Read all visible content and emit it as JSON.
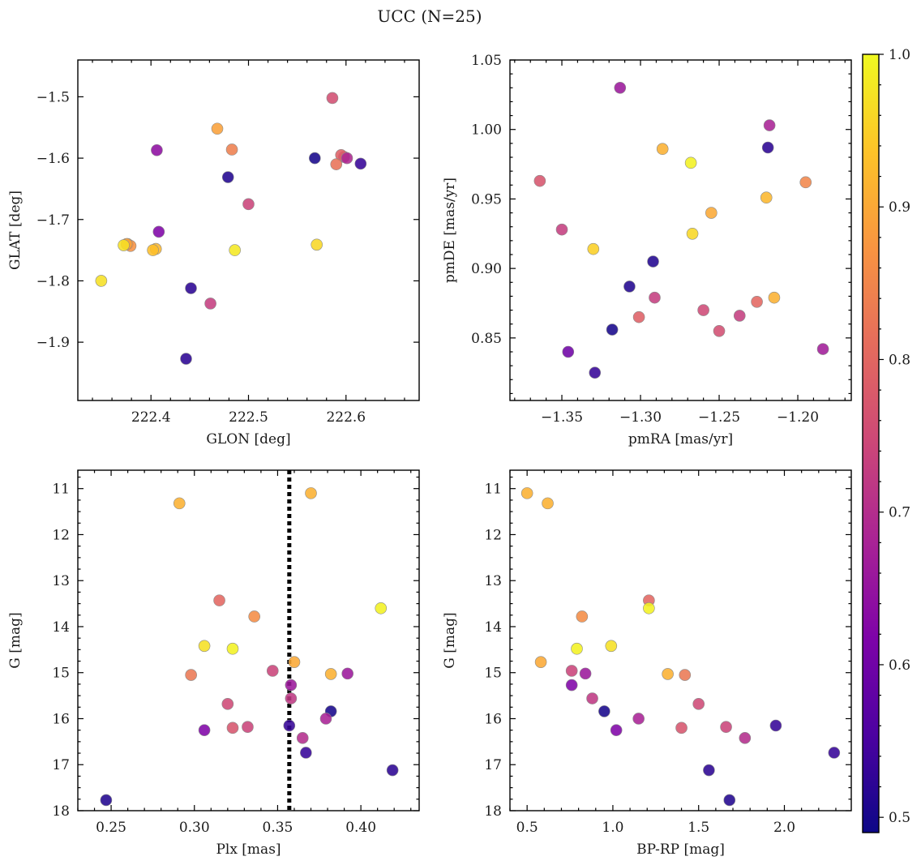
{
  "title": "UCC (N=25)",
  "colorbar": {
    "range": [
      0.49,
      1.0
    ],
    "ticks": [
      0.5,
      0.6,
      0.7,
      0.8,
      0.9,
      1.0
    ],
    "tick_labels": [
      "0.5",
      "0.6",
      "0.7",
      "0.8",
      "0.9",
      "1.0"
    ],
    "colormap": "plasma"
  },
  "chart_data": [
    {
      "type": "scatter",
      "xlabel": "GLON [deg]",
      "ylabel": "GLAT [deg]",
      "xlim": [
        222.325,
        222.675
      ],
      "ylim": [
        -1.995,
        -1.44
      ],
      "xticks": [
        222.4,
        222.5,
        222.6
      ],
      "xtick_labels": [
        "222.4",
        "222.5",
        "222.6"
      ],
      "yticks": [
        -1.5,
        -1.6,
        -1.7,
        -1.8,
        -1.9
      ],
      "ytick_labels": [
        "−1.5",
        "−1.6",
        "−1.7",
        "−1.8",
        "−1.9"
      ],
      "x": [
        222.468,
        222.483,
        222.376,
        222.379,
        222.375,
        222.405,
        222.57,
        222.598,
        222.568,
        222.615,
        222.595,
        222.59,
        222.601,
        222.586,
        222.5,
        222.406,
        222.486,
        222.479,
        222.408,
        222.441,
        222.461,
        222.436,
        222.402,
        222.372,
        222.349
      ],
      "y": [
        -1.552,
        -1.586,
        -1.74,
        -1.743,
        -1.74,
        -1.748,
        -1.741,
        -1.598,
        -1.6,
        -1.609,
        -1.595,
        -1.61,
        -1.6,
        -1.502,
        -1.675,
        -1.587,
        -1.75,
        -1.631,
        -1.72,
        -1.812,
        -1.837,
        -1.927,
        -1.75,
        -1.742,
        -1.8
      ],
      "color_values": [
        0.89,
        0.84,
        0.9,
        0.87,
        0.89,
        0.92,
        0.96,
        0.71,
        0.5,
        0.53,
        0.79,
        0.82,
        0.69,
        0.76,
        0.74,
        0.64,
        0.98,
        0.51,
        0.62,
        0.52,
        0.73,
        0.52,
        0.93,
        0.97,
        0.97
      ]
    },
    {
      "type": "scatter",
      "xlabel": "pmRA [mas/yr]",
      "ylabel": "pmDE [mas/yr]",
      "xlim": [
        -1.383,
        -1.166
      ],
      "ylim": [
        0.805,
        1.05
      ],
      "xticks": [
        -1.35,
        -1.3,
        -1.25,
        -1.2
      ],
      "xtick_labels": [
        "−1.35",
        "−1.30",
        "−1.25",
        "−1.20"
      ],
      "yticks": [
        0.85,
        0.9,
        0.95,
        1.0,
        1.05
      ],
      "ytick_labels": [
        "0.85",
        "0.90",
        "0.95",
        "1.00",
        "1.05"
      ],
      "x": [
        -1.313,
        -1.364,
        -1.35,
        -1.33,
        -1.346,
        -1.329,
        -1.318,
        -1.307,
        -1.292,
        -1.301,
        -1.286,
        -1.268,
        -1.267,
        -1.291,
        -1.26,
        -1.255,
        -1.25,
        -1.237,
        -1.226,
        -1.22,
        -1.219,
        -1.218,
        -1.215,
        -1.195,
        -1.184
      ],
      "y": [
        1.03,
        0.963,
        0.928,
        0.914,
        0.84,
        0.825,
        0.856,
        0.887,
        0.905,
        0.865,
        0.986,
        0.976,
        0.925,
        0.879,
        0.87,
        0.94,
        0.855,
        0.866,
        0.876,
        0.951,
        0.987,
        1.003,
        0.879,
        0.962,
        0.842
      ],
      "color_values": [
        0.66,
        0.77,
        0.73,
        0.95,
        0.6,
        0.53,
        0.5,
        0.51,
        0.51,
        0.79,
        0.91,
        0.99,
        0.96,
        0.73,
        0.75,
        0.9,
        0.76,
        0.73,
        0.8,
        0.92,
        0.52,
        0.68,
        0.91,
        0.85,
        0.67
      ]
    },
    {
      "type": "scatter",
      "xlabel": "Plx [mas]",
      "ylabel": "G [mag]",
      "xlim": [
        0.23,
        0.435
      ],
      "ylim": [
        18.0,
        10.6
      ],
      "xticks": [
        0.25,
        0.3,
        0.35,
        0.4
      ],
      "xtick_labels": [
        "0.25",
        "0.30",
        "0.35",
        "0.40"
      ],
      "yticks": [
        11,
        12,
        13,
        14,
        15,
        16,
        17,
        18
      ],
      "ytick_labels": [
        "11",
        "12",
        "13",
        "14",
        "15",
        "16",
        "17",
        "18"
      ],
      "vline": 0.357,
      "x": [
        0.291,
        0.37,
        0.315,
        0.336,
        0.412,
        0.306,
        0.323,
        0.36,
        0.298,
        0.347,
        0.382,
        0.392,
        0.358,
        0.358,
        0.32,
        0.382,
        0.379,
        0.306,
        0.323,
        0.332,
        0.357,
        0.365,
        0.367,
        0.419,
        0.247
      ],
      "y": [
        11.32,
        11.1,
        13.43,
        13.78,
        13.6,
        14.42,
        14.48,
        14.77,
        15.05,
        14.96,
        15.03,
        15.02,
        15.27,
        15.56,
        15.68,
        15.84,
        16.0,
        16.25,
        16.2,
        16.18,
        16.15,
        16.42,
        16.74,
        17.12,
        17.77
      ],
      "color_values": [
        0.91,
        0.91,
        0.8,
        0.86,
        0.99,
        0.97,
        0.99,
        0.9,
        0.83,
        0.74,
        0.91,
        0.66,
        0.66,
        0.72,
        0.75,
        0.5,
        0.68,
        0.62,
        0.77,
        0.74,
        0.53,
        0.7,
        0.53,
        0.52,
        0.51
      ]
    },
    {
      "type": "scatter",
      "xlabel": "BP-RP [mag]",
      "ylabel": "G [mag]",
      "xlim": [
        0.4,
        2.39
      ],
      "ylim": [
        18.0,
        10.6
      ],
      "xticks": [
        0.5,
        1.0,
        1.5,
        2.0
      ],
      "xtick_labels": [
        "0.5",
        "1.0",
        "1.5",
        "2.0"
      ],
      "yticks": [
        11,
        12,
        13,
        14,
        15,
        16,
        17,
        18
      ],
      "ytick_labels": [
        "11",
        "12",
        "13",
        "14",
        "15",
        "16",
        "17",
        "18"
      ],
      "x": [
        0.5,
        0.62,
        1.21,
        0.82,
        1.21,
        0.79,
        0.99,
        0.58,
        0.76,
        0.84,
        1.32,
        1.42,
        0.76,
        0.88,
        1.5,
        0.95,
        1.15,
        1.02,
        1.4,
        1.66,
        1.95,
        1.77,
        2.29,
        1.56,
        1.68
      ],
      "y": [
        11.1,
        11.32,
        13.43,
        13.78,
        13.6,
        14.48,
        14.42,
        14.77,
        14.96,
        15.02,
        15.03,
        15.05,
        15.27,
        15.56,
        15.68,
        15.84,
        16.0,
        16.25,
        16.2,
        16.18,
        16.15,
        16.42,
        16.74,
        17.12,
        17.77
      ],
      "color_values": [
        0.91,
        0.91,
        0.8,
        0.86,
        0.99,
        0.99,
        0.97,
        0.9,
        0.74,
        0.66,
        0.91,
        0.83,
        0.62,
        0.72,
        0.75,
        0.5,
        0.68,
        0.62,
        0.77,
        0.74,
        0.53,
        0.7,
        0.53,
        0.52,
        0.51
      ]
    }
  ]
}
